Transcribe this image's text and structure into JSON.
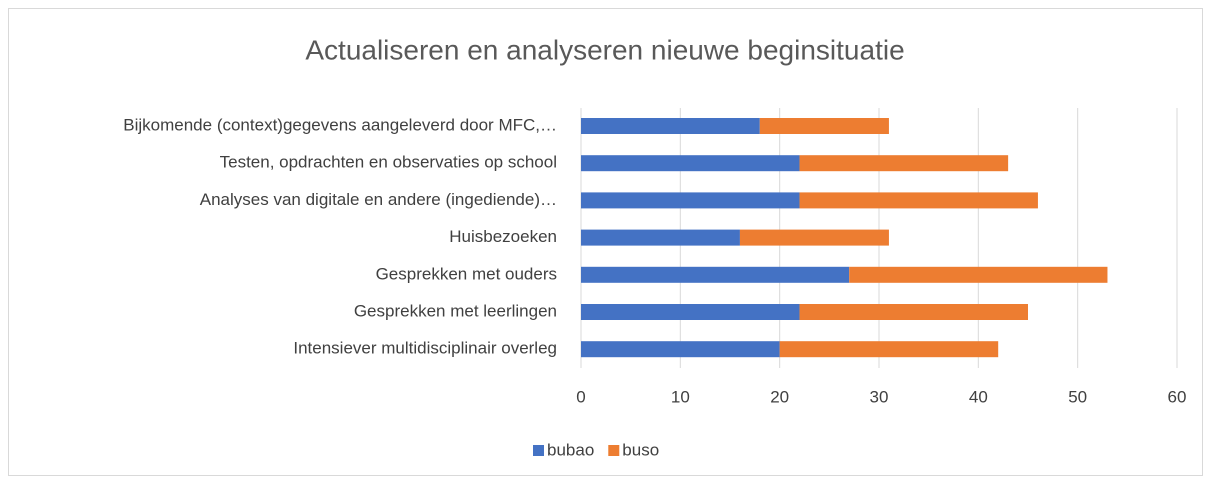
{
  "chart_data": {
    "type": "stacked-bar-horizontal",
    "title": "Actualiseren en analyseren nieuwe beginsituatie",
    "categories": [
      "Bijkomende (context)gegevens aangeleverd door MFC,…",
      "Testen, opdrachten en observaties op school",
      "Analyses van digitale en andere (ingediende)…",
      "Huisbezoeken",
      "Gesprekken met ouders",
      "Gesprekken met leerlingen",
      "Intensiever multidisciplinair overleg"
    ],
    "series": [
      {
        "name": "bubao",
        "color": "#4472c4",
        "values": [
          18,
          22,
          22,
          16,
          27,
          22,
          20
        ]
      },
      {
        "name": "buso",
        "color": "#ed7d31",
        "values": [
          13,
          21,
          24,
          15,
          26,
          23,
          22
        ]
      }
    ],
    "xlim": [
      0,
      60
    ],
    "xticks": [
      0,
      10,
      20,
      30,
      40,
      50,
      60
    ],
    "grid": true,
    "legend": "bottom"
  }
}
